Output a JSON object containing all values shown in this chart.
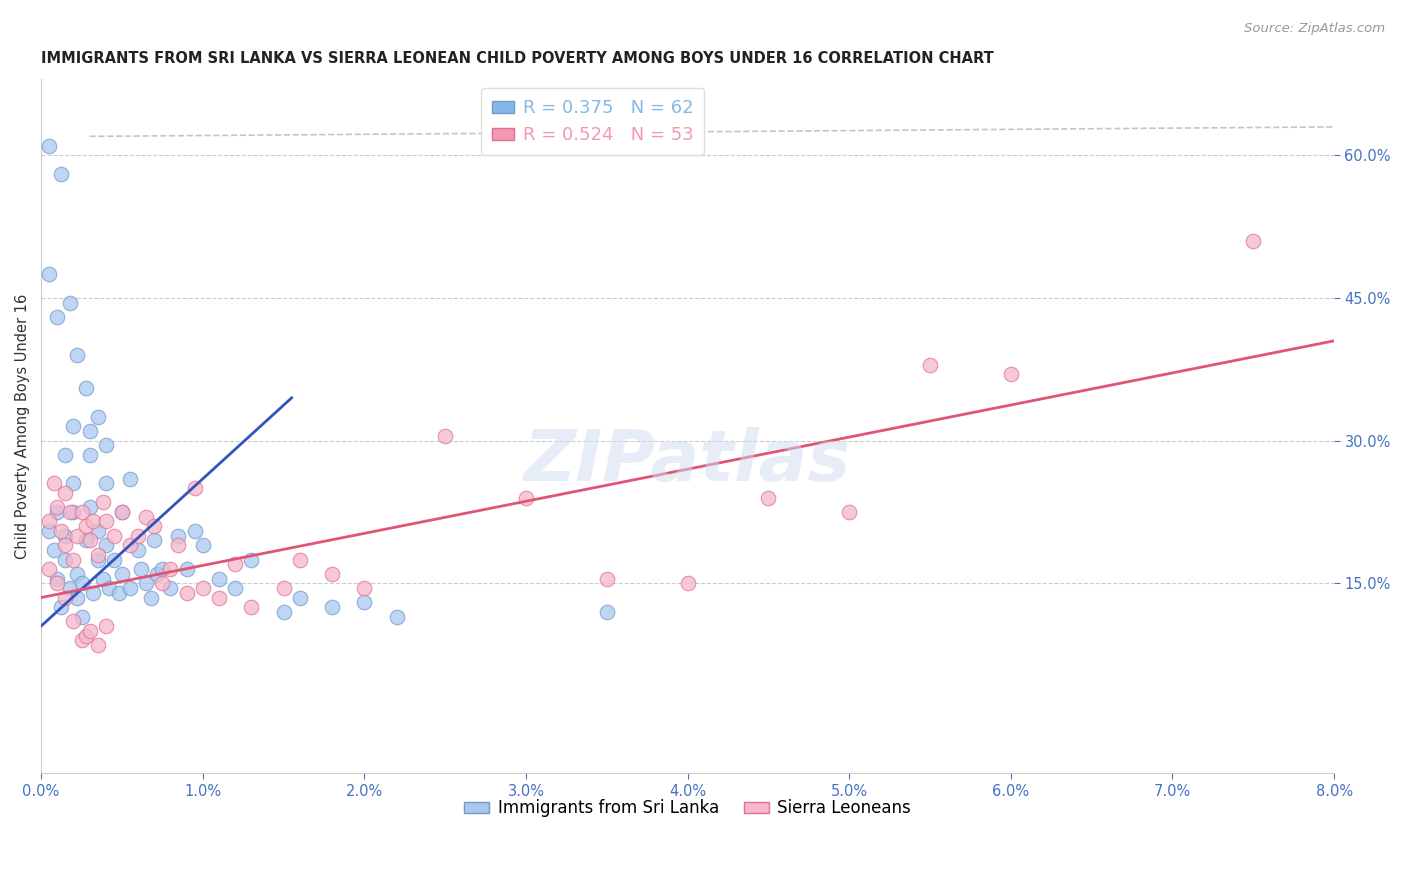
{
  "title": "IMMIGRANTS FROM SRI LANKA VS SIERRA LEONEAN CHILD POVERTY AMONG BOYS UNDER 16 CORRELATION CHART",
  "source": "Source: ZipAtlas.com",
  "ylabel": "Child Poverty Among Boys Under 16",
  "xlim": [
    0.0,
    8.0
  ],
  "ylim": [
    -5.0,
    68.0
  ],
  "yticks_right": [
    15.0,
    30.0,
    45.0,
    60.0
  ],
  "legend_entries": [
    {
      "label": "R = 0.375   N = 62",
      "color": "#85b8e8"
    },
    {
      "label": "R = 0.524   N = 53",
      "color": "#f299b0"
    }
  ],
  "legend_labels_bottom": [
    "Immigrants from Sri Lanka",
    "Sierra Leoneans"
  ],
  "blue_scatter": [
    [
      0.05,
      20.5
    ],
    [
      0.08,
      18.5
    ],
    [
      0.1,
      22.5
    ],
    [
      0.1,
      15.5
    ],
    [
      0.12,
      12.5
    ],
    [
      0.15,
      17.5
    ],
    [
      0.15,
      20.0
    ],
    [
      0.18,
      14.5
    ],
    [
      0.2,
      25.5
    ],
    [
      0.2,
      31.5
    ],
    [
      0.22,
      13.5
    ],
    [
      0.22,
      16.0
    ],
    [
      0.25,
      11.5
    ],
    [
      0.25,
      15.0
    ],
    [
      0.28,
      19.5
    ],
    [
      0.3,
      28.5
    ],
    [
      0.3,
      23.0
    ],
    [
      0.32,
      14.0
    ],
    [
      0.35,
      17.5
    ],
    [
      0.35,
      20.5
    ],
    [
      0.38,
      15.5
    ],
    [
      0.4,
      19.0
    ],
    [
      0.4,
      25.5
    ],
    [
      0.42,
      14.5
    ],
    [
      0.45,
      17.5
    ],
    [
      0.48,
      14.0
    ],
    [
      0.5,
      16.0
    ],
    [
      0.5,
      22.5
    ],
    [
      0.55,
      14.5
    ],
    [
      0.55,
      26.0
    ],
    [
      0.6,
      18.5
    ],
    [
      0.62,
      16.5
    ],
    [
      0.65,
      15.0
    ],
    [
      0.68,
      13.5
    ],
    [
      0.7,
      19.5
    ],
    [
      0.72,
      16.0
    ],
    [
      0.75,
      16.5
    ],
    [
      0.8,
      14.5
    ],
    [
      0.85,
      20.0
    ],
    [
      0.9,
      16.5
    ],
    [
      0.95,
      20.5
    ],
    [
      1.0,
      19.0
    ],
    [
      1.1,
      15.5
    ],
    [
      1.2,
      14.5
    ],
    [
      1.3,
      17.5
    ],
    [
      1.5,
      12.0
    ],
    [
      1.6,
      13.5
    ],
    [
      0.05,
      47.5
    ],
    [
      0.1,
      43.0
    ],
    [
      0.18,
      44.5
    ],
    [
      0.22,
      39.0
    ],
    [
      0.28,
      35.5
    ],
    [
      0.3,
      31.0
    ],
    [
      0.35,
      32.5
    ],
    [
      0.4,
      29.5
    ],
    [
      0.05,
      61.0
    ],
    [
      0.12,
      58.0
    ],
    [
      0.15,
      28.5
    ],
    [
      0.2,
      22.5
    ],
    [
      1.8,
      12.5
    ],
    [
      2.0,
      13.0
    ],
    [
      2.2,
      11.5
    ],
    [
      3.5,
      12.0
    ]
  ],
  "pink_scatter": [
    [
      0.05,
      21.5
    ],
    [
      0.08,
      25.5
    ],
    [
      0.1,
      23.0
    ],
    [
      0.12,
      20.5
    ],
    [
      0.15,
      24.5
    ],
    [
      0.15,
      19.0
    ],
    [
      0.18,
      22.5
    ],
    [
      0.2,
      17.5
    ],
    [
      0.22,
      20.0
    ],
    [
      0.25,
      22.5
    ],
    [
      0.28,
      21.0
    ],
    [
      0.3,
      19.5
    ],
    [
      0.32,
      21.5
    ],
    [
      0.35,
      18.0
    ],
    [
      0.38,
      23.5
    ],
    [
      0.4,
      21.5
    ],
    [
      0.45,
      20.0
    ],
    [
      0.5,
      22.5
    ],
    [
      0.55,
      19.0
    ],
    [
      0.6,
      20.0
    ],
    [
      0.65,
      22.0
    ],
    [
      0.7,
      21.0
    ],
    [
      0.75,
      15.0
    ],
    [
      0.8,
      16.5
    ],
    [
      0.85,
      19.0
    ],
    [
      0.9,
      14.0
    ],
    [
      0.95,
      25.0
    ],
    [
      1.0,
      14.5
    ],
    [
      1.1,
      13.5
    ],
    [
      1.2,
      17.0
    ],
    [
      1.3,
      12.5
    ],
    [
      1.5,
      14.5
    ],
    [
      1.6,
      17.5
    ],
    [
      1.8,
      16.0
    ],
    [
      2.0,
      14.5
    ],
    [
      0.1,
      15.0
    ],
    [
      0.2,
      11.0
    ],
    [
      0.25,
      9.0
    ],
    [
      0.28,
      9.5
    ],
    [
      0.3,
      10.0
    ],
    [
      0.35,
      8.5
    ],
    [
      0.4,
      10.5
    ],
    [
      0.05,
      16.5
    ],
    [
      0.15,
      13.5
    ],
    [
      2.5,
      30.5
    ],
    [
      3.0,
      24.0
    ],
    [
      3.5,
      15.5
    ],
    [
      4.0,
      15.0
    ],
    [
      4.5,
      24.0
    ],
    [
      5.0,
      22.5
    ],
    [
      5.5,
      38.0
    ],
    [
      6.0,
      37.0
    ],
    [
      7.5,
      51.0
    ]
  ],
  "blue_line_pts": {
    "x0": 0.0,
    "y0": 10.5,
    "x1": 1.55,
    "y1": 34.5
  },
  "pink_line_pts": {
    "x0": 0.0,
    "y0": 13.5,
    "x1": 8.0,
    "y1": 40.5
  },
  "diag_line_pts": {
    "x0": 0.5,
    "y0": 60.0,
    "x1": 8.0,
    "y1": 62.0
  },
  "blue_color": "#a8c8f0",
  "pink_color": "#f5b8cb",
  "blue_edge": "#7099cc",
  "pink_edge": "#e07090",
  "blue_line_color": "#3355bb",
  "pink_line_color": "#e05575",
  "diag_color": "#b8c8d8",
  "marker_size": 110,
  "background_color": "#ffffff",
  "title_fontsize": 10.5,
  "axis_label_fontsize": 10.5,
  "tick_fontsize": 10.5,
  "source_fontsize": 9.5
}
